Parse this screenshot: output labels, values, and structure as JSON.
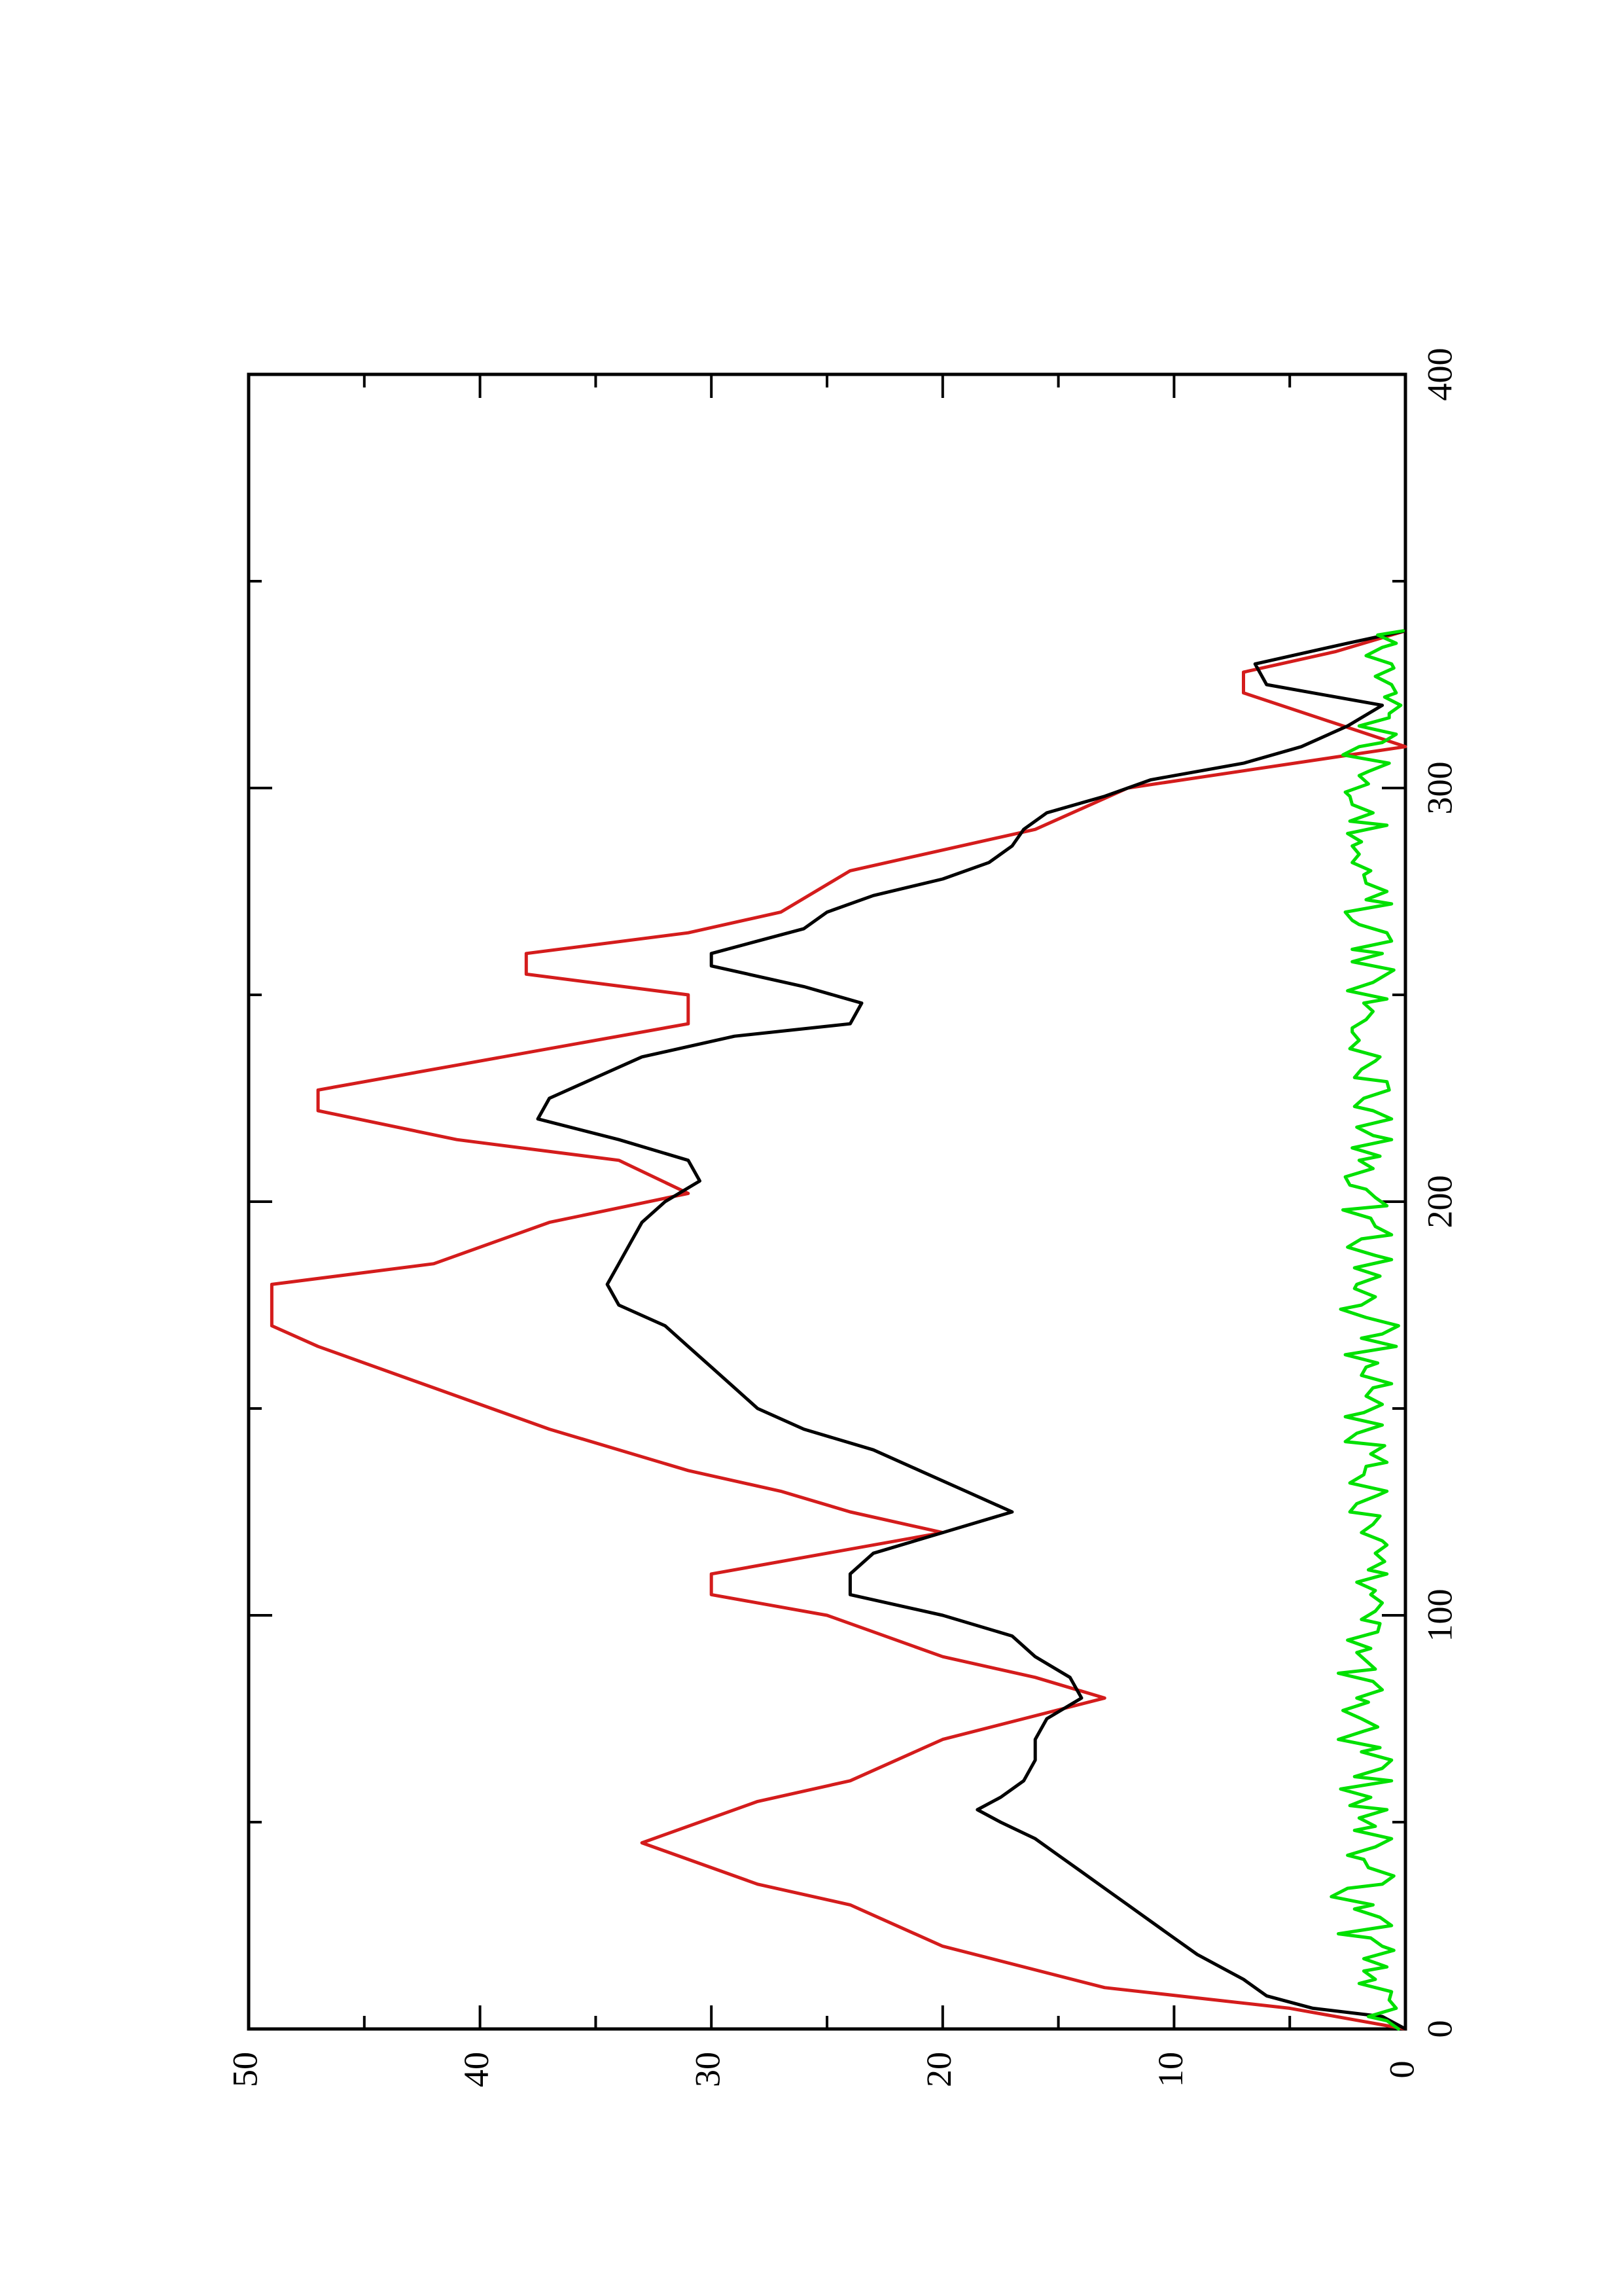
{
  "chart_data": {
    "type": "line",
    "title": "",
    "xlabel": "",
    "ylabel": "",
    "xlim": [
      0,
      400
    ],
    "ylim": [
      0,
      50
    ],
    "x_ticks": [
      0,
      100,
      200,
      300,
      400
    ],
    "x_minor_ticks": [
      50,
      150,
      250,
      350
    ],
    "y_ticks": [
      0,
      10,
      20,
      30,
      40,
      50
    ],
    "y_minor_ticks": [
      5,
      15,
      25,
      35,
      45
    ],
    "x_tick_labels": [
      "0",
      "100",
      "200",
      "300",
      "400"
    ],
    "y_tick_labels": [
      "0",
      "10",
      "20",
      "30",
      "40",
      "50"
    ],
    "orientation": "rotated 90 degrees counter-clockwise",
    "grid": false,
    "legend": "none",
    "series": [
      {
        "color": "#d41c1c",
        "points": [
          [
            0,
            0
          ],
          [
            5,
            5
          ],
          [
            10,
            13
          ],
          [
            20,
            20
          ],
          [
            30,
            24
          ],
          [
            35,
            28
          ],
          [
            45,
            33
          ],
          [
            55,
            28
          ],
          [
            60,
            24
          ],
          [
            70,
            20
          ],
          [
            80,
            13
          ],
          [
            85,
            16
          ],
          [
            90,
            20
          ],
          [
            100,
            25
          ],
          [
            105,
            30
          ],
          [
            110,
            30
          ],
          [
            115,
            25
          ],
          [
            120,
            20
          ],
          [
            125,
            24
          ],
          [
            130,
            27
          ],
          [
            135,
            31
          ],
          [
            145,
            37
          ],
          [
            155,
            42
          ],
          [
            165,
            47
          ],
          [
            170,
            49
          ],
          [
            180,
            49
          ],
          [
            185,
            42
          ],
          [
            195,
            37
          ],
          [
            202,
            31
          ],
          [
            210,
            34
          ],
          [
            215,
            41
          ],
          [
            222,
            47
          ],
          [
            227,
            47
          ],
          [
            233,
            41
          ],
          [
            243,
            31
          ],
          [
            250,
            31
          ],
          [
            255,
            38
          ],
          [
            260,
            38
          ],
          [
            265,
            31
          ],
          [
            270,
            27
          ],
          [
            280,
            24
          ],
          [
            290,
            16
          ],
          [
            300,
            12
          ],
          [
            310,
            0
          ],
          [
            323,
            7
          ],
          [
            328,
            7
          ],
          [
            333,
            3
          ],
          [
            338,
            0
          ]
        ]
      },
      {
        "color": "#000000",
        "points": [
          [
            0,
            0
          ],
          [
            3,
            1
          ],
          [
            5,
            4
          ],
          [
            8,
            6
          ],
          [
            12,
            7
          ],
          [
            15,
            8
          ],
          [
            18,
            9
          ],
          [
            22,
            10
          ],
          [
            26,
            11
          ],
          [
            30,
            12
          ],
          [
            34,
            13
          ],
          [
            38,
            14
          ],
          [
            42,
            15
          ],
          [
            46,
            16
          ],
          [
            50,
            17.5
          ],
          [
            53,
            18.5
          ],
          [
            56,
            17.5
          ],
          [
            60,
            16.5
          ],
          [
            65,
            16
          ],
          [
            70,
            16
          ],
          [
            75,
            15.5
          ],
          [
            80,
            14
          ],
          [
            85,
            14.5
          ],
          [
            90,
            16
          ],
          [
            95,
            17
          ],
          [
            100,
            20
          ],
          [
            105,
            24
          ],
          [
            110,
            24
          ],
          [
            115,
            23
          ],
          [
            120,
            20
          ],
          [
            125,
            17
          ],
          [
            130,
            19
          ],
          [
            135,
            21
          ],
          [
            140,
            23
          ],
          [
            145,
            26
          ],
          [
            150,
            28
          ],
          [
            155,
            29
          ],
          [
            160,
            30
          ],
          [
            165,
            31
          ],
          [
            170,
            32
          ],
          [
            175,
            34
          ],
          [
            180,
            34.5
          ],
          [
            185,
            34
          ],
          [
            190,
            33.5
          ],
          [
            195,
            33
          ],
          [
            200,
            32
          ],
          [
            205,
            30.5
          ],
          [
            210,
            31
          ],
          [
            215,
            34
          ],
          [
            220,
            37.5
          ],
          [
            225,
            37
          ],
          [
            230,
            35
          ],
          [
            235,
            33
          ],
          [
            240,
            29
          ],
          [
            243,
            24
          ],
          [
            248,
            23.5
          ],
          [
            252,
            26
          ],
          [
            257,
            30
          ],
          [
            260,
            30
          ],
          [
            263,
            28
          ],
          [
            266,
            26
          ],
          [
            270,
            25
          ],
          [
            274,
            23
          ],
          [
            278,
            20
          ],
          [
            282,
            18
          ],
          [
            286,
            17
          ],
          [
            290,
            16.5
          ],
          [
            294,
            15.5
          ],
          [
            298,
            13
          ],
          [
            302,
            11
          ],
          [
            306,
            7
          ],
          [
            310,
            4.5
          ],
          [
            315,
            2.5
          ],
          [
            320,
            1
          ],
          [
            325,
            6
          ],
          [
            330,
            6.5
          ],
          [
            335,
            2.5
          ],
          [
            338,
            0
          ]
        ]
      },
      {
        "color": "#00e000",
        "points": [
          [
            0,
            0.3
          ],
          [
            2,
            0.8
          ],
          [
            3,
            1.6
          ],
          [
            5,
            0.4
          ],
          [
            7,
            0.7
          ],
          [
            9,
            0.6
          ],
          [
            11,
            2.0
          ],
          [
            12,
            1.3
          ],
          [
            14,
            1.8
          ],
          [
            15,
            0.8
          ],
          [
            17,
            1.8
          ],
          [
            19,
            0.5
          ],
          [
            20,
            1.0
          ],
          [
            22,
            1.5
          ],
          [
            23,
            2.9
          ],
          [
            25,
            0.6
          ],
          [
            27,
            1.1
          ],
          [
            29,
            2.2
          ],
          [
            30,
            1.4
          ],
          [
            32,
            3.2
          ],
          [
            34,
            2.5
          ],
          [
            35,
            1.0
          ],
          [
            37,
            0.5
          ],
          [
            39,
            1.6
          ],
          [
            41,
            1.8
          ],
          [
            42,
            2.5
          ],
          [
            44,
            1.3
          ],
          [
            46,
            0.6
          ],
          [
            48,
            2.2
          ],
          [
            49,
            1.3
          ],
          [
            51,
            2.0
          ],
          [
            53,
            0.8
          ],
          [
            54,
            2.4
          ],
          [
            56,
            1.5
          ],
          [
            58,
            2.8
          ],
          [
            60,
            0.6
          ],
          [
            61,
            2.2
          ],
          [
            63,
            1.0
          ],
          [
            65,
            0.6
          ],
          [
            67,
            1.9
          ],
          [
            68,
            1.1
          ],
          [
            70,
            2.9
          ],
          [
            72,
            1.8
          ],
          [
            73,
            1.2
          ],
          [
            75,
            1.9
          ],
          [
            77,
            2.7
          ],
          [
            79,
            1.6
          ],
          [
            80,
            2.1
          ],
          [
            82,
            1.0
          ],
          [
            84,
            1.4
          ],
          [
            86,
            2.9
          ],
          [
            87,
            1.3
          ],
          [
            89,
            1.7
          ],
          [
            91,
            2.1
          ],
          [
            92,
            1.5
          ],
          [
            94,
            2.5
          ],
          [
            96,
            1.2
          ],
          [
            98,
            1.1
          ],
          [
            99,
            1.9
          ],
          [
            101,
            1.3
          ],
          [
            103,
            1.0
          ],
          [
            105,
            1.5
          ],
          [
            106,
            1.3
          ],
          [
            108,
            2.1
          ],
          [
            110,
            0.8
          ],
          [
            111,
            1.6
          ],
          [
            113,
            0.9
          ],
          [
            115,
            1.3
          ],
          [
            117,
            0.8
          ],
          [
            118,
            1.0
          ],
          [
            120,
            1.9
          ],
          [
            122,
            1.4
          ],
          [
            124,
            1.1
          ],
          [
            125,
            2.4
          ],
          [
            127,
            2.1
          ],
          [
            129,
            1.2
          ],
          [
            130,
            0.8
          ],
          [
            132,
            2.4
          ],
          [
            134,
            1.8
          ],
          [
            136,
            1.7
          ],
          [
            137,
            0.8
          ],
          [
            139,
            1.5
          ],
          [
            141,
            0.9
          ],
          [
            142,
            2.6
          ],
          [
            144,
            2.1
          ],
          [
            146,
            1.0
          ],
          [
            148,
            2.6
          ],
          [
            149,
            1.8
          ],
          [
            151,
            1.0
          ],
          [
            153,
            1.7
          ],
          [
            155,
            1.4
          ],
          [
            156,
            0.6
          ],
          [
            158,
            1.9
          ],
          [
            160,
            1.7
          ],
          [
            161,
            1.2
          ],
          [
            163,
            2.6
          ],
          [
            165,
            0.4
          ],
          [
            167,
            1.9
          ],
          [
            168,
            1.0
          ],
          [
            170,
            0.3
          ],
          [
            172,
            1.7
          ],
          [
            174,
            2.8
          ],
          [
            175,
            1.9
          ],
          [
            177,
            1.3
          ],
          [
            179,
            2.2
          ],
          [
            180,
            2.1
          ],
          [
            182,
            1.1
          ],
          [
            184,
            2.2
          ],
          [
            186,
            0.6
          ],
          [
            187,
            1.3
          ],
          [
            189,
            2.5
          ],
          [
            191,
            1.9
          ],
          [
            192,
            0.6
          ],
          [
            194,
            1.3
          ],
          [
            196,
            1.5
          ],
          [
            198,
            2.7
          ],
          [
            199,
            0.8
          ],
          [
            201,
            1.3
          ],
          [
            203,
            1.7
          ],
          [
            204,
            2.4
          ],
          [
            206,
            2.6
          ],
          [
            208,
            1.4
          ],
          [
            210,
            2.0
          ],
          [
            211,
            1.1
          ],
          [
            213,
            2.3
          ],
          [
            215,
            0.6
          ],
          [
            216,
            1.4
          ],
          [
            218,
            2.1
          ],
          [
            220,
            0.6
          ],
          [
            222,
            1.4
          ],
          [
            223,
            2.2
          ],
          [
            225,
            1.8
          ],
          [
            227,
            0.7
          ],
          [
            229,
            0.8
          ],
          [
            230,
            2.2
          ],
          [
            232,
            1.9
          ],
          [
            234,
            1.3
          ],
          [
            235,
            1.1
          ],
          [
            237,
            2.4
          ],
          [
            239,
            2.0
          ],
          [
            241,
            2.3
          ],
          [
            242,
            2.3
          ],
          [
            244,
            1.7
          ],
          [
            246,
            1.4
          ],
          [
            248,
            1.8
          ],
          [
            249,
            0.8
          ],
          [
            251,
            2.5
          ],
          [
            253,
            1.4
          ],
          [
            254,
            1.1
          ],
          [
            256,
            0.5
          ],
          [
            258,
            2.3
          ],
          [
            260,
            1.0
          ],
          [
            261,
            2.3
          ],
          [
            263,
            0.6
          ],
          [
            265,
            0.8
          ],
          [
            267,
            2.0
          ],
          [
            268,
            2.3
          ],
          [
            270,
            2.6
          ],
          [
            272,
            0.6
          ],
          [
            273,
            1.7
          ],
          [
            275,
            0.8
          ],
          [
            277,
            1.7
          ],
          [
            279,
            1.8
          ],
          [
            280,
            1.5
          ],
          [
            282,
            2.3
          ],
          [
            284,
            2.0
          ],
          [
            286,
            2.3
          ],
          [
            287,
            1.9
          ],
          [
            289,
            2.5
          ],
          [
            291,
            0.8
          ],
          [
            292,
            2.4
          ],
          [
            294,
            1.4
          ],
          [
            296,
            2.3
          ],
          [
            298,
            2.4
          ],
          [
            299,
            2.6
          ],
          [
            301,
            1.6
          ],
          [
            303,
            2.0
          ],
          [
            304,
            1.6
          ],
          [
            306,
            0.7
          ],
          [
            308,
            2.7
          ],
          [
            310,
            2.0
          ],
          [
            311,
            1.0
          ],
          [
            313,
            0.4
          ],
          [
            315,
            2.0
          ],
          [
            317,
            0.7
          ],
          [
            318,
            0.7
          ],
          [
            320,
            0.2
          ],
          [
            322,
            0.9
          ],
          [
            323,
            0.4
          ],
          [
            325,
            0.6
          ],
          [
            327,
            1.3
          ],
          [
            329,
            0.5
          ],
          [
            330,
            0.6
          ],
          [
            332,
            1.7
          ],
          [
            334,
            1.0
          ],
          [
            335,
            0.4
          ],
          [
            337,
            1.2
          ],
          [
            338,
            0.1
          ]
        ]
      }
    ]
  }
}
